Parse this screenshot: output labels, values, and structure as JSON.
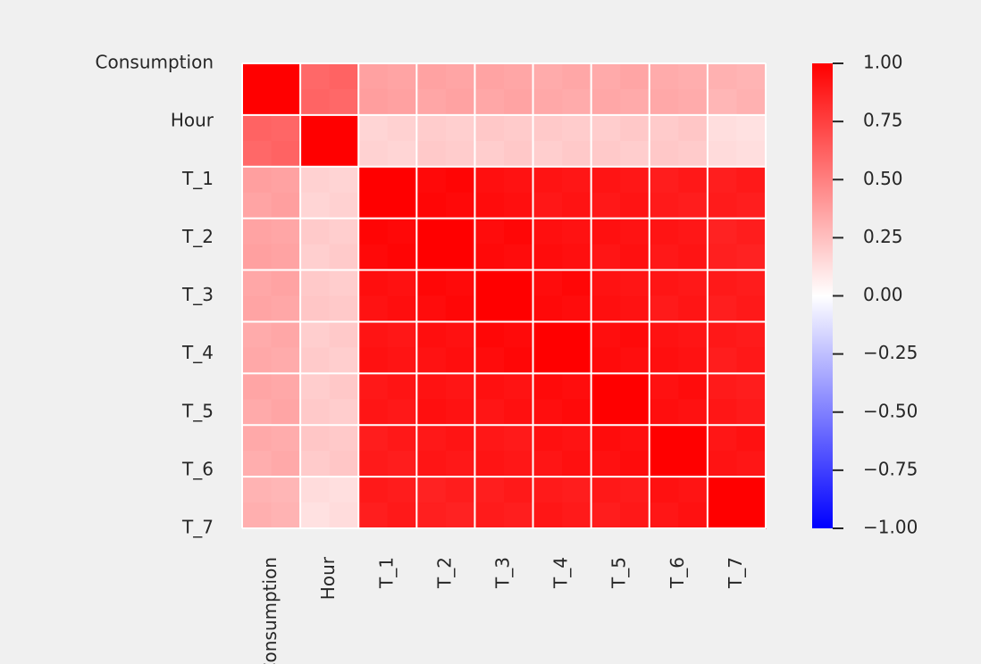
{
  "chart_data": {
    "type": "heatmap",
    "title": "",
    "xlabel": "",
    "ylabel": "",
    "row_labels": [
      "Consumption",
      "Hour",
      "T_1",
      "T_2",
      "T_3",
      "T_4",
      "T_5",
      "T_6",
      "T_7"
    ],
    "col_labels": [
      "Consumption",
      "Hour",
      "T_1",
      "T_2",
      "T_3",
      "T_4",
      "T_5",
      "T_6",
      "T_7"
    ],
    "grid_rows": 18,
    "grid_cols": 18,
    "block_size": 2,
    "block_values": [
      [
        1.0,
        0.6,
        0.37,
        0.36,
        0.35,
        0.34,
        0.34,
        0.33,
        0.3
      ],
      [
        0.6,
        1.0,
        0.17,
        0.2,
        0.21,
        0.2,
        0.21,
        0.21,
        0.13
      ],
      [
        0.37,
        0.17,
        1.0,
        0.97,
        0.94,
        0.92,
        0.91,
        0.9,
        0.89
      ],
      [
        0.36,
        0.2,
        0.97,
        1.0,
        0.96,
        0.94,
        0.93,
        0.91,
        0.88
      ],
      [
        0.35,
        0.21,
        0.94,
        0.96,
        1.0,
        0.96,
        0.93,
        0.91,
        0.89
      ],
      [
        0.34,
        0.2,
        0.92,
        0.94,
        0.96,
        1.0,
        0.95,
        0.93,
        0.9
      ],
      [
        0.34,
        0.21,
        0.91,
        0.93,
        0.93,
        0.95,
        1.0,
        0.94,
        0.9
      ],
      [
        0.33,
        0.21,
        0.9,
        0.91,
        0.91,
        0.93,
        0.94,
        1.0,
        0.92
      ],
      [
        0.3,
        0.13,
        0.89,
        0.88,
        0.89,
        0.9,
        0.9,
        0.92,
        1.0
      ]
    ],
    "vmin": -1.0,
    "vmax": 1.0,
    "colormap": "bwr",
    "colormap_colors": [
      "#0000ff",
      "#ffffff",
      "#ff0000"
    ],
    "colorbar_ticks": [
      "1.00",
      "0.75",
      "0.50",
      "0.25",
      "0.00",
      "−0.25",
      "−0.50",
      "−0.75",
      "−1.00"
    ],
    "colorbar_tick_values": [
      1.0,
      0.75,
      0.5,
      0.25,
      0.0,
      -0.25,
      -0.5,
      -0.75,
      -1.0
    ],
    "grid": true,
    "grid_color": "#ffffff",
    "background": "#f0f0f0",
    "legend": "colorbar-right"
  }
}
